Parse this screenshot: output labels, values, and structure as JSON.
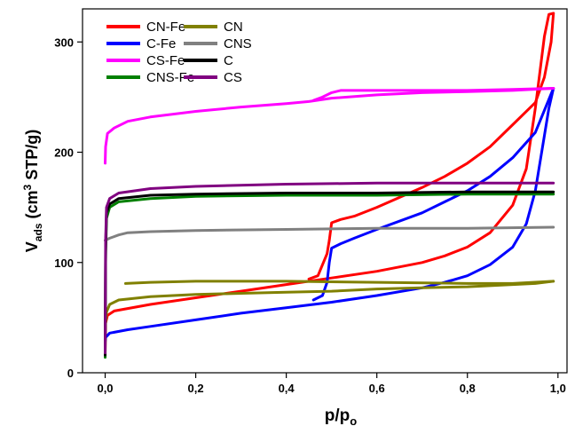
{
  "chart_data": {
    "type": "line",
    "xlabel": "p/p",
    "xlabel_sub": "o",
    "ylabel_main": "V",
    "ylabel_sub": "ads",
    "ylabel_pre": " (cm",
    "ylabel_sup": "3",
    "ylabel_post": " STP/g)",
    "xlim": [
      -0.05,
      1.02
    ],
    "ylim": [
      0,
      330
    ],
    "xticks": [
      0.0,
      0.2,
      0.4,
      0.6,
      0.8,
      1.0
    ],
    "xtick_labels": [
      "0,0",
      "0,2",
      "0,4",
      "0,6",
      "0,8",
      "1,0"
    ],
    "yticks": [
      0,
      100,
      200,
      300
    ],
    "ytick_labels": [
      "0",
      "100",
      "200",
      "300"
    ],
    "legend_position": "top-left",
    "series": [
      {
        "name": "CN-Fe",
        "color": "#ff0000",
        "adsorption": [
          [
            0.0,
            17
          ],
          [
            0.001,
            45
          ],
          [
            0.005,
            52
          ],
          [
            0.02,
            56
          ],
          [
            0.1,
            62
          ],
          [
            0.2,
            68
          ],
          [
            0.3,
            74
          ],
          [
            0.4,
            80
          ],
          [
            0.45,
            83
          ],
          [
            0.5,
            86
          ],
          [
            0.6,
            92
          ],
          [
            0.7,
            100
          ],
          [
            0.75,
            106
          ],
          [
            0.8,
            114
          ],
          [
            0.85,
            127
          ],
          [
            0.9,
            152
          ],
          [
            0.93,
            185
          ],
          [
            0.95,
            240
          ],
          [
            0.97,
            305
          ],
          [
            0.98,
            325
          ],
          [
            0.99,
            326
          ]
        ],
        "desorption": [
          [
            0.99,
            326
          ],
          [
            0.985,
            300
          ],
          [
            0.97,
            268
          ],
          [
            0.95,
            245
          ],
          [
            0.9,
            225
          ],
          [
            0.85,
            205
          ],
          [
            0.8,
            190
          ],
          [
            0.75,
            178
          ],
          [
            0.7,
            168
          ],
          [
            0.6,
            150
          ],
          [
            0.55,
            142
          ],
          [
            0.52,
            139
          ],
          [
            0.5,
            136
          ],
          [
            0.495,
            120
          ],
          [
            0.49,
            108
          ],
          [
            0.47,
            88
          ],
          [
            0.45,
            85
          ]
        ]
      },
      {
        "name": "C-Fe",
        "color": "#0000ff",
        "adsorption": [
          [
            0.0,
            28
          ],
          [
            0.001,
            32
          ],
          [
            0.01,
            36
          ],
          [
            0.05,
            39
          ],
          [
            0.1,
            42
          ],
          [
            0.2,
            48
          ],
          [
            0.3,
            54
          ],
          [
            0.4,
            59
          ],
          [
            0.5,
            64
          ],
          [
            0.6,
            70
          ],
          [
            0.7,
            77
          ],
          [
            0.75,
            82
          ],
          [
            0.8,
            88
          ],
          [
            0.85,
            98
          ],
          [
            0.9,
            114
          ],
          [
            0.93,
            135
          ],
          [
            0.95,
            165
          ],
          [
            0.97,
            215
          ],
          [
            0.98,
            240
          ],
          [
            0.99,
            258
          ]
        ],
        "desorption": [
          [
            0.99,
            258
          ],
          [
            0.95,
            218
          ],
          [
            0.9,
            195
          ],
          [
            0.85,
            178
          ],
          [
            0.8,
            165
          ],
          [
            0.75,
            155
          ],
          [
            0.7,
            145
          ],
          [
            0.6,
            130
          ],
          [
            0.55,
            122
          ],
          [
            0.52,
            117
          ],
          [
            0.5,
            113
          ],
          [
            0.495,
            100
          ],
          [
            0.49,
            82
          ],
          [
            0.48,
            70
          ],
          [
            0.46,
            66
          ]
        ]
      },
      {
        "name": "CS-Fe",
        "color": "#ff00ff",
        "adsorption": [
          [
            0.0,
            190
          ],
          [
            0.001,
            205
          ],
          [
            0.005,
            217
          ],
          [
            0.02,
            222
          ],
          [
            0.05,
            228
          ],
          [
            0.1,
            232
          ],
          [
            0.2,
            237
          ],
          [
            0.3,
            241
          ],
          [
            0.4,
            244
          ],
          [
            0.45,
            246
          ],
          [
            0.5,
            249
          ],
          [
            0.6,
            252
          ],
          [
            0.7,
            254
          ],
          [
            0.8,
            255
          ],
          [
            0.9,
            256
          ],
          [
            0.99,
            258
          ]
        ],
        "desorption": [
          [
            0.99,
            258
          ],
          [
            0.9,
            257
          ],
          [
            0.8,
            256
          ],
          [
            0.7,
            256
          ],
          [
            0.6,
            256
          ],
          [
            0.55,
            256
          ],
          [
            0.52,
            256
          ],
          [
            0.5,
            254
          ],
          [
            0.48,
            250
          ],
          [
            0.46,
            247
          ]
        ]
      },
      {
        "name": "CNS-Fe",
        "color": "#008000",
        "adsorption": [
          [
            0.0,
            14
          ],
          [
            0.001,
            100
          ],
          [
            0.003,
            140
          ],
          [
            0.01,
            150
          ],
          [
            0.03,
            155
          ],
          [
            0.1,
            158
          ],
          [
            0.2,
            160
          ],
          [
            0.4,
            161
          ],
          [
            0.6,
            161
          ],
          [
            0.8,
            162
          ],
          [
            0.99,
            162
          ]
        ],
        "desorption": []
      },
      {
        "name": "CN",
        "color": "#808000",
        "adsorption": [
          [
            0.0,
            40
          ],
          [
            0.003,
            55
          ],
          [
            0.01,
            62
          ],
          [
            0.03,
            66
          ],
          [
            0.1,
            69
          ],
          [
            0.2,
            71
          ],
          [
            0.3,
            72
          ],
          [
            0.4,
            73
          ],
          [
            0.5,
            74
          ],
          [
            0.6,
            76
          ],
          [
            0.7,
            77
          ],
          [
            0.8,
            78
          ],
          [
            0.9,
            80
          ],
          [
            0.95,
            81
          ],
          [
            0.99,
            83
          ]
        ],
        "desorption": [
          [
            0.99,
            83
          ],
          [
            0.9,
            81
          ],
          [
            0.8,
            81
          ],
          [
            0.6,
            82
          ],
          [
            0.4,
            83
          ],
          [
            0.2,
            83
          ],
          [
            0.1,
            82
          ],
          [
            0.045,
            81
          ]
        ]
      },
      {
        "name": "CNS",
        "color": "#808080",
        "adsorption": [
          [
            0.0,
            120
          ],
          [
            0.01,
            122
          ],
          [
            0.03,
            125
          ],
          [
            0.05,
            127
          ],
          [
            0.1,
            128
          ],
          [
            0.2,
            129
          ],
          [
            0.4,
            130
          ],
          [
            0.6,
            131
          ],
          [
            0.8,
            131
          ],
          [
            0.99,
            132
          ]
        ],
        "desorption": []
      },
      {
        "name": "C",
        "color": "#000000",
        "adsorption": [
          [
            0.0,
            16
          ],
          [
            0.001,
            110
          ],
          [
            0.003,
            145
          ],
          [
            0.01,
            153
          ],
          [
            0.03,
            158
          ],
          [
            0.1,
            161
          ],
          [
            0.2,
            162
          ],
          [
            0.4,
            163
          ],
          [
            0.6,
            163
          ],
          [
            0.8,
            164
          ],
          [
            0.99,
            164
          ]
        ],
        "desorption": []
      },
      {
        "name": "CS",
        "color": "#800080",
        "adsorption": [
          [
            0.0,
            18
          ],
          [
            0.001,
            120
          ],
          [
            0.003,
            150
          ],
          [
            0.01,
            158
          ],
          [
            0.03,
            163
          ],
          [
            0.1,
            167
          ],
          [
            0.2,
            169
          ],
          [
            0.4,
            171
          ],
          [
            0.6,
            172
          ],
          [
            0.8,
            172
          ],
          [
            0.99,
            172
          ]
        ],
        "desorption": []
      }
    ]
  }
}
